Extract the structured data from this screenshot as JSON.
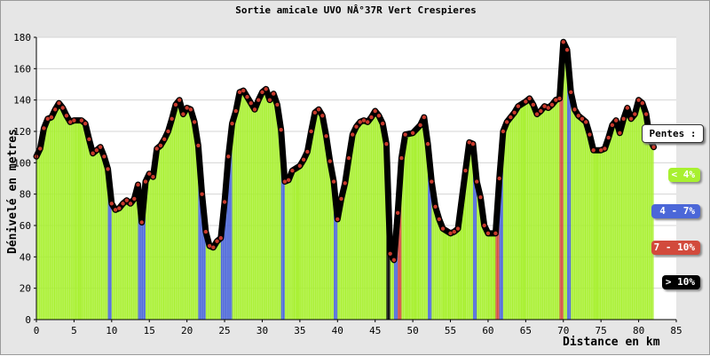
{
  "chart_data": {
    "type": "area",
    "title": "Sortie amicale UVO NÂ°37R Vert Crespieres",
    "xlabel": "Distance en km",
    "ylabel": "Dénivelé en metres",
    "xlim": [
      0,
      85
    ],
    "ylim": [
      0,
      180
    ],
    "x_ticks": [
      "0",
      "5",
      "10",
      "15",
      "20",
      "25",
      "30",
      "35",
      "40",
      "45",
      "50",
      "55",
      "60",
      "65",
      "70",
      "75",
      "80",
      "85"
    ],
    "y_ticks": [
      "0",
      "20",
      "40",
      "60",
      "80",
      "100",
      "120",
      "140",
      "160",
      "180"
    ],
    "grid": "horizontal",
    "legend_title": "Pentes :",
    "legend": [
      {
        "label": "< 4%",
        "color": "#a8f030"
      },
      {
        "label": "4 - 7%",
        "color": "#4b67d8"
      },
      {
        "label": "7 - 10%",
        "color": "#d24a3c"
      },
      {
        "label": "> 10%",
        "color": "#000000"
      }
    ],
    "profile": [
      [
        0,
        104
      ],
      [
        0.5,
        109
      ],
      [
        1,
        122
      ],
      [
        1.5,
        128
      ],
      [
        2,
        129
      ],
      [
        2.5,
        134
      ],
      [
        3,
        138
      ],
      [
        3.5,
        135
      ],
      [
        4,
        130
      ],
      [
        4.5,
        126
      ],
      [
        5,
        127
      ],
      [
        6,
        127
      ],
      [
        6.5,
        125
      ],
      [
        7,
        115
      ],
      [
        7.5,
        106
      ],
      [
        8,
        108
      ],
      [
        8.5,
        110
      ],
      [
        9,
        104
      ],
      [
        9.5,
        96
      ],
      [
        10,
        74
      ],
      [
        10.5,
        70
      ],
      [
        11,
        71
      ],
      [
        11.5,
        74
      ],
      [
        12,
        76
      ],
      [
        12.5,
        74
      ],
      [
        13,
        77
      ],
      [
        13.5,
        86
      ],
      [
        14,
        62
      ],
      [
        14.5,
        88
      ],
      [
        15,
        93
      ],
      [
        15.5,
        91
      ],
      [
        16,
        109
      ],
      [
        16.5,
        111
      ],
      [
        17,
        115
      ],
      [
        17.5,
        120
      ],
      [
        18,
        128
      ],
      [
        18.5,
        137
      ],
      [
        19,
        140
      ],
      [
        19.5,
        131
      ],
      [
        20,
        135
      ],
      [
        20.5,
        134
      ],
      [
        21,
        126
      ],
      [
        21.5,
        111
      ],
      [
        22,
        80
      ],
      [
        22.5,
        56
      ],
      [
        23,
        47
      ],
      [
        23.5,
        46
      ],
      [
        24,
        50
      ],
      [
        24.5,
        52
      ],
      [
        25,
        75
      ],
      [
        25.5,
        104
      ],
      [
        26,
        125
      ],
      [
        26.5,
        133
      ],
      [
        27,
        145
      ],
      [
        27.5,
        146
      ],
      [
        28,
        142
      ],
      [
        28.5,
        138
      ],
      [
        29,
        134
      ],
      [
        29.5,
        140
      ],
      [
        30,
        145
      ],
      [
        30.5,
        147
      ],
      [
        31,
        140
      ],
      [
        31.5,
        144
      ],
      [
        32,
        137
      ],
      [
        32.5,
        121
      ],
      [
        33,
        88
      ],
      [
        33.5,
        89
      ],
      [
        34,
        95
      ],
      [
        35,
        98
      ],
      [
        35.5,
        102
      ],
      [
        36,
        107
      ],
      [
        36.5,
        120
      ],
      [
        37,
        132
      ],
      [
        37.5,
        134
      ],
      [
        38,
        130
      ],
      [
        38.5,
        117
      ],
      [
        39,
        101
      ],
      [
        39.5,
        88
      ],
      [
        40,
        64
      ],
      [
        40.5,
        77
      ],
      [
        41,
        87
      ],
      [
        41.5,
        103
      ],
      [
        42,
        118
      ],
      [
        42.5,
        123
      ],
      [
        43,
        126
      ],
      [
        43.5,
        127
      ],
      [
        44,
        126
      ],
      [
        44.5,
        129
      ],
      [
        45,
        133
      ],
      [
        45.5,
        130
      ],
      [
        46,
        125
      ],
      [
        46.5,
        112
      ],
      [
        47,
        42
      ],
      [
        47.5,
        38
      ],
      [
        48,
        68
      ],
      [
        48.5,
        103
      ],
      [
        49,
        118
      ],
      [
        50,
        119
      ],
      [
        51,
        124
      ],
      [
        51.5,
        129
      ],
      [
        52,
        112
      ],
      [
        52.5,
        88
      ],
      [
        53,
        72
      ],
      [
        53.5,
        64
      ],
      [
        54,
        58
      ],
      [
        55,
        55
      ],
      [
        55.5,
        56
      ],
      [
        56,
        58
      ],
      [
        57,
        95
      ],
      [
        57.5,
        113
      ],
      [
        58,
        112
      ],
      [
        58.5,
        88
      ],
      [
        59,
        78
      ],
      [
        59.5,
        60
      ],
      [
        60,
        55
      ],
      [
        61,
        55
      ],
      [
        61.5,
        90
      ],
      [
        62,
        120
      ],
      [
        62.5,
        126
      ],
      [
        63,
        129
      ],
      [
        63.5,
        132
      ],
      [
        64,
        136
      ],
      [
        65,
        139
      ],
      [
        65.5,
        141
      ],
      [
        66,
        137
      ],
      [
        66.5,
        131
      ],
      [
        67,
        133
      ],
      [
        67.5,
        136
      ],
      [
        68,
        135
      ],
      [
        68.5,
        137
      ],
      [
        69,
        140
      ],
      [
        69.5,
        141
      ],
      [
        70,
        177
      ],
      [
        70.5,
        172
      ],
      [
        71,
        145
      ],
      [
        71.5,
        134
      ],
      [
        72,
        130
      ],
      [
        72.5,
        128
      ],
      [
        73,
        126
      ],
      [
        73.5,
        118
      ],
      [
        74,
        108
      ],
      [
        75,
        108
      ],
      [
        75.5,
        109
      ],
      [
        76,
        116
      ],
      [
        76.5,
        124
      ],
      [
        77,
        127
      ],
      [
        77.5,
        119
      ],
      [
        78,
        128
      ],
      [
        78.5,
        135
      ],
      [
        79,
        128
      ],
      [
        79.5,
        131
      ],
      [
        80,
        140
      ],
      [
        80.5,
        138
      ],
      [
        81,
        131
      ],
      [
        81.5,
        115
      ],
      [
        82,
        110
      ]
    ]
  }
}
